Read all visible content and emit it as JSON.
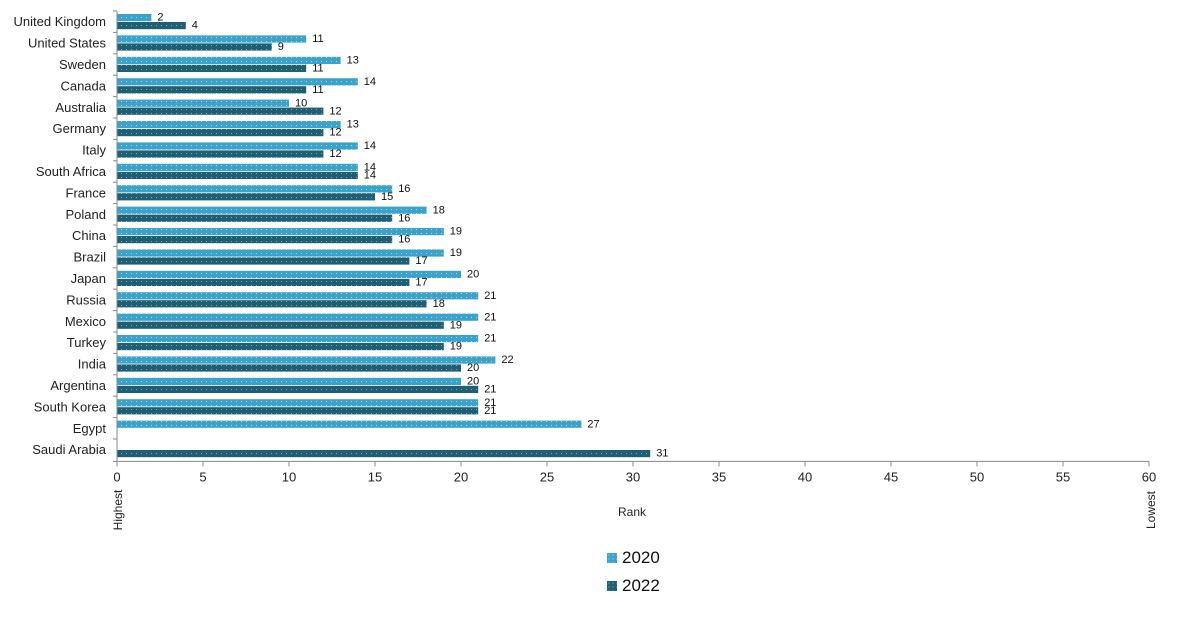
{
  "chart_data": {
    "type": "bar",
    "orientation": "horizontal",
    "xlabel": "Rank",
    "x_low_label": "Highest",
    "x_high_label": "Lowest",
    "xlim": [
      0,
      60
    ],
    "xticks": [
      0,
      5,
      10,
      15,
      20,
      25,
      30,
      35,
      40,
      45,
      50,
      55,
      60
    ],
    "grid": false,
    "legend_position": "bottom-center",
    "categories": [
      "United Kingdom",
      "United States",
      "Sweden",
      "Canada",
      "Australia",
      "Germany",
      "Italy",
      "South Africa",
      "France",
      "Poland",
      "China",
      "Brazil",
      "Japan",
      "Russia",
      "Mexico",
      "Turkey",
      "India",
      "Argentina",
      "South Korea",
      "Egypt",
      "Saudi Arabia"
    ],
    "series": [
      {
        "name": "2020",
        "color": "#3ba3c9",
        "values": [
          2,
          11,
          13,
          14,
          10,
          13,
          14,
          14,
          16,
          18,
          19,
          19,
          20,
          21,
          21,
          21,
          22,
          20,
          21,
          27,
          null
        ]
      },
      {
        "name": "2022",
        "color": "#1f5f73",
        "values": [
          4,
          9,
          11,
          11,
          12,
          12,
          12,
          14,
          15,
          16,
          16,
          17,
          17,
          18,
          19,
          19,
          20,
          21,
          21,
          null,
          31
        ]
      }
    ]
  }
}
